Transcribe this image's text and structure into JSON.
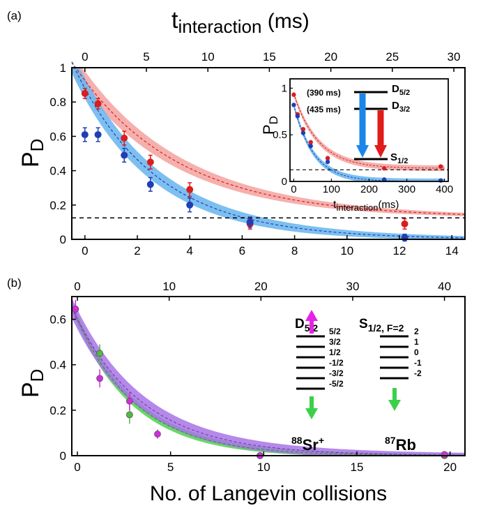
{
  "chart_data": [
    {
      "panel": "(a)",
      "type": "scatter",
      "x_bottom": {
        "label": "",
        "ticks": [
          0,
          2,
          4,
          6,
          8,
          10,
          12,
          14
        ],
        "range": [
          -0.5,
          14.5
        ]
      },
      "x_top": {
        "label": "t",
        "label_sub": "interaction",
        "label_unit": " (ms)",
        "ticks": [
          0,
          5,
          10,
          15,
          20,
          25,
          30
        ]
      },
      "y": {
        "label": "P",
        "label_sub": "D",
        "ticks": [
          "0",
          "0.2",
          "0.4",
          "0.6",
          "0.8",
          "1"
        ],
        "range": [
          0,
          1
        ]
      },
      "threshold": 0.125,
      "series": [
        {
          "color": "#d81e1e",
          "band_color": "#f4a7a4",
          "x": [
            0,
            0.5,
            1.5,
            2.5,
            4,
            6.3,
            12.2
          ],
          "y": [
            0.85,
            0.79,
            0.59,
            0.45,
            0.29,
            0.09,
            0.09
          ],
          "err": [
            0.03,
            0.03,
            0.04,
            0.04,
            0.04,
            0.03,
            0.03
          ],
          "fit": {
            "a": 0.8,
            "k": 0.255,
            "c": 0.125
          }
        },
        {
          "color": "#1f3fb3",
          "band_color": "#6fb8ee",
          "x": [
            0,
            0.5,
            1.5,
            2.5,
            4,
            6.3,
            12.2
          ],
          "y": [
            0.61,
            0.61,
            0.49,
            0.32,
            0.2,
            0.1,
            0.01
          ],
          "err": [
            0.04,
            0.04,
            0.04,
            0.04,
            0.04,
            0.03,
            0.02
          ],
          "fit": {
            "a": 0.88,
            "k": 0.32,
            "c": 0.0
          }
        }
      ],
      "inset": {
        "x_label": "t",
        "x_label_sub": "interaction",
        "x_label_unit": "(ms)",
        "x_ticks": [
          0,
          100,
          200,
          300,
          400
        ],
        "y_label": "P",
        "y_label_sub": "D",
        "y_ticks": [
          "0",
          "0.5",
          "1"
        ],
        "levels": [
          {
            "lifetime": "(390 ms)",
            "name": "D",
            "sub": "5/2"
          },
          {
            "lifetime": "(435 ms)",
            "name": "D",
            "sub": "3/2"
          },
          {
            "lifetime": "",
            "name": "S",
            "sub": "1/2"
          }
        ],
        "series": [
          {
            "color": "#d81e1e",
            "x": [
              0,
              10,
              25,
              45,
              90,
              240,
              390
            ],
            "y": [
              0.93,
              0.72,
              0.56,
              0.42,
              0.25,
              0.14,
              0.16
            ]
          },
          {
            "color": "#1f3fb3",
            "x": [
              0,
              10,
              25,
              45,
              90,
              240,
              390
            ],
            "y": [
              0.82,
              0.7,
              0.52,
              0.38,
              0.21,
              0.02,
              0.01
            ]
          }
        ]
      }
    },
    {
      "panel": "(b)",
      "type": "scatter",
      "x_bottom": {
        "label": "No. of Langevin collisions",
        "ticks": [
          0,
          5,
          10,
          15,
          20
        ],
        "range": [
          -0.3,
          20.8
        ]
      },
      "x_top": {
        "ticks": [
          0,
          10,
          20,
          30,
          40
        ]
      },
      "y": {
        "label": "P",
        "label_sub": "D",
        "ticks": [
          "0",
          "0.2",
          "0.4",
          "0.6"
        ],
        "range": [
          0,
          0.7
        ]
      },
      "series": [
        {
          "color": "#54b848",
          "band_color": "#4ed14e",
          "x": [
            -0.1,
            1.2,
            2.8,
            9.8,
            19.7
          ],
          "y": [
            0.645,
            0.45,
            0.18,
            0.0,
            0.0
          ],
          "err": [
            0.04,
            0.04,
            0.04,
            0.01,
            0.01
          ],
          "fit": {
            "a": 0.6,
            "k": 0.31,
            "c": 0.0
          }
        },
        {
          "color": "#d52be0",
          "band_color": "#a774e6",
          "x": [
            -0.1,
            1.2,
            2.8,
            4.3,
            9.8,
            19.7
          ],
          "y": [
            0.645,
            0.34,
            0.24,
            0.095,
            0.0,
            0.005
          ],
          "err": [
            0.04,
            0.04,
            0.04,
            0.02,
            0.01,
            0.01
          ],
          "fit": {
            "a": 0.6,
            "k": 0.27,
            "c": 0.0
          }
        }
      ],
      "levels_left": {
        "title": "D",
        "title_sub": "5/2",
        "labels": [
          "5/2",
          "3/2",
          "1/2",
          "-1/2",
          "-3/2",
          "-5/2"
        ],
        "ion": "Sr",
        "ion_mass": "88",
        "ion_charge": "+"
      },
      "levels_right": {
        "title": "S",
        "title_sub": "1/2, F=2",
        "labels": [
          "2",
          "1",
          "0",
          "-1",
          "-2"
        ],
        "atom": "Rb",
        "atom_mass": "87"
      }
    }
  ]
}
